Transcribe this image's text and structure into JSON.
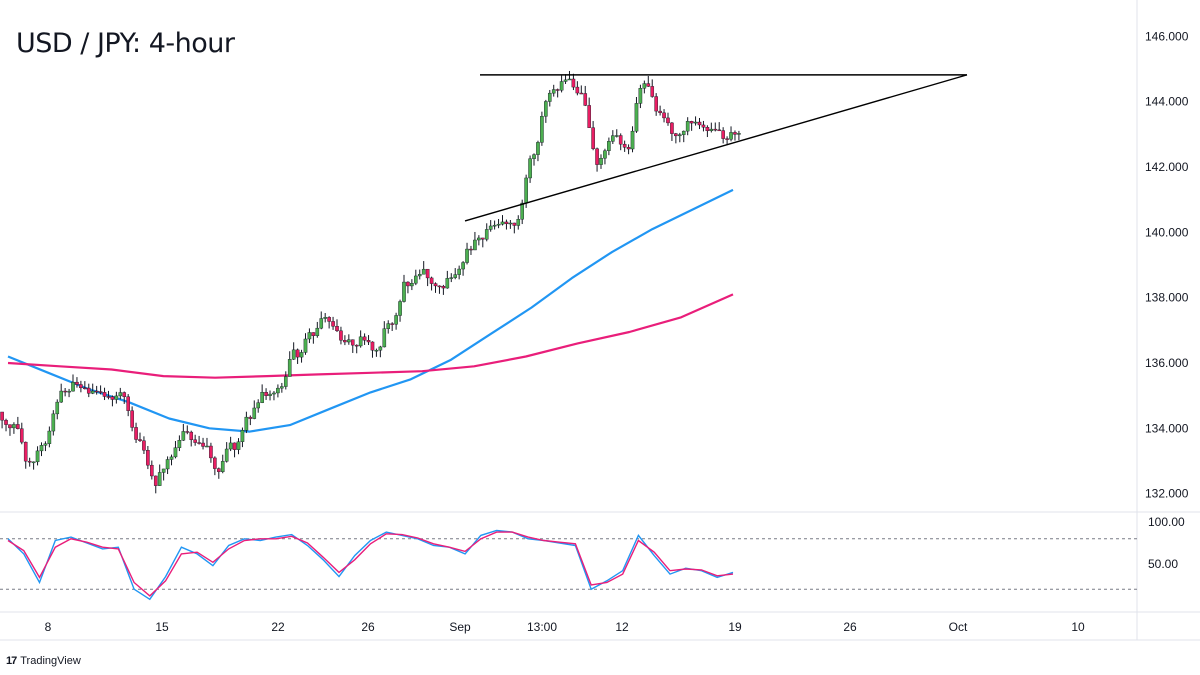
{
  "title": "USD / JPY: 4-hour",
  "brand": {
    "logo": "17",
    "name": "TradingView"
  },
  "colors": {
    "up": "#26a69a",
    "up_body": "#4caf50",
    "down": "#e91e63",
    "ma_fast": "#2196f3",
    "ma_slow": "#e91e7a",
    "stoch_k": "#2196f3",
    "stoch_d": "#e91e7a",
    "trendline": "#000000"
  },
  "chart_data": [
    {
      "type": "candlestick",
      "title": "USD / JPY: 4-hour",
      "y_ticks": [
        "146.000",
        "144.000",
        "142.000",
        "140.000",
        "138.000",
        "136.000",
        "134.000",
        "132.000"
      ],
      "ylim": [
        131.5,
        146.5
      ],
      "x_ticks": [
        "8",
        "15",
        "22",
        "26",
        "Sep",
        "13:00",
        "12",
        "19",
        "26",
        "Oct",
        "10"
      ],
      "grid": false,
      "series": [
        {
          "name": "close",
          "values": [
            134.2,
            133.0,
            133.6,
            135.0,
            135.3,
            135.0,
            134.9,
            135.1,
            133.5,
            132.4,
            133.2,
            133.8,
            133.4,
            132.8,
            133.5,
            134.4,
            135.0,
            135.3,
            136.3,
            137.0,
            137.4,
            136.6,
            136.7,
            136.5,
            137.3,
            138.5,
            138.7,
            138.5,
            138.6,
            139.5,
            140.0,
            140.2,
            140.4,
            142.5,
            144.3,
            144.6,
            144.1,
            142.2,
            142.9,
            142.6,
            144.6,
            143.6,
            143.1,
            143.5,
            143.2,
            142.9,
            143.1
          ]
        }
      ],
      "moving_averages": [
        {
          "values": [
            136.2,
            135.7,
            135.2,
            134.8,
            134.3,
            134.0,
            133.9,
            134.1,
            134.6,
            135.1,
            135.5,
            136.1,
            136.9,
            137.7,
            138.6,
            139.4,
            140.1,
            140.7,
            141.3
          ]
        },
        {
          "values": [
            136.0,
            135.9,
            135.8,
            135.6,
            135.55,
            135.6,
            135.65,
            135.7,
            135.75,
            135.9,
            136.2,
            136.6,
            136.95,
            137.4,
            138.1
          ]
        }
      ],
      "trendlines": [
        {
          "from": [
            "Aug 30",
            140.3
          ],
          "to": [
            "Oct 1",
            144.8
          ]
        },
        {
          "from": [
            "Sep 4",
            144.8
          ],
          "to": [
            "Oct 1",
            144.8
          ]
        }
      ]
    },
    {
      "type": "line",
      "y_ticks": [
        "100.00",
        "50.00"
      ],
      "ylim": [
        0,
        100
      ],
      "levels": [
        80,
        20
      ],
      "series": [
        {
          "values": [
            80,
            62,
            28,
            78,
            82,
            75,
            68,
            70,
            20,
            8,
            35,
            70,
            62,
            48,
            72,
            80,
            78,
            82,
            85,
            72,
            55,
            35,
            60,
            78,
            88,
            84,
            80,
            72,
            70,
            62,
            84,
            90,
            88,
            80,
            78,
            75,
            72,
            20,
            30,
            42,
            84,
            60,
            38,
            45,
            42,
            34,
            40
          ]
        },
        {
          "values": [
            78,
            66,
            34,
            70,
            80,
            76,
            70,
            68,
            28,
            12,
            30,
            62,
            64,
            52,
            68,
            78,
            80,
            80,
            83,
            75,
            58,
            40,
            55,
            74,
            86,
            85,
            81,
            74,
            70,
            65,
            80,
            88,
            88,
            82,
            78,
            76,
            74,
            25,
            28,
            38,
            78,
            64,
            42,
            44,
            43,
            36,
            38
          ]
        }
      ]
    }
  ]
}
